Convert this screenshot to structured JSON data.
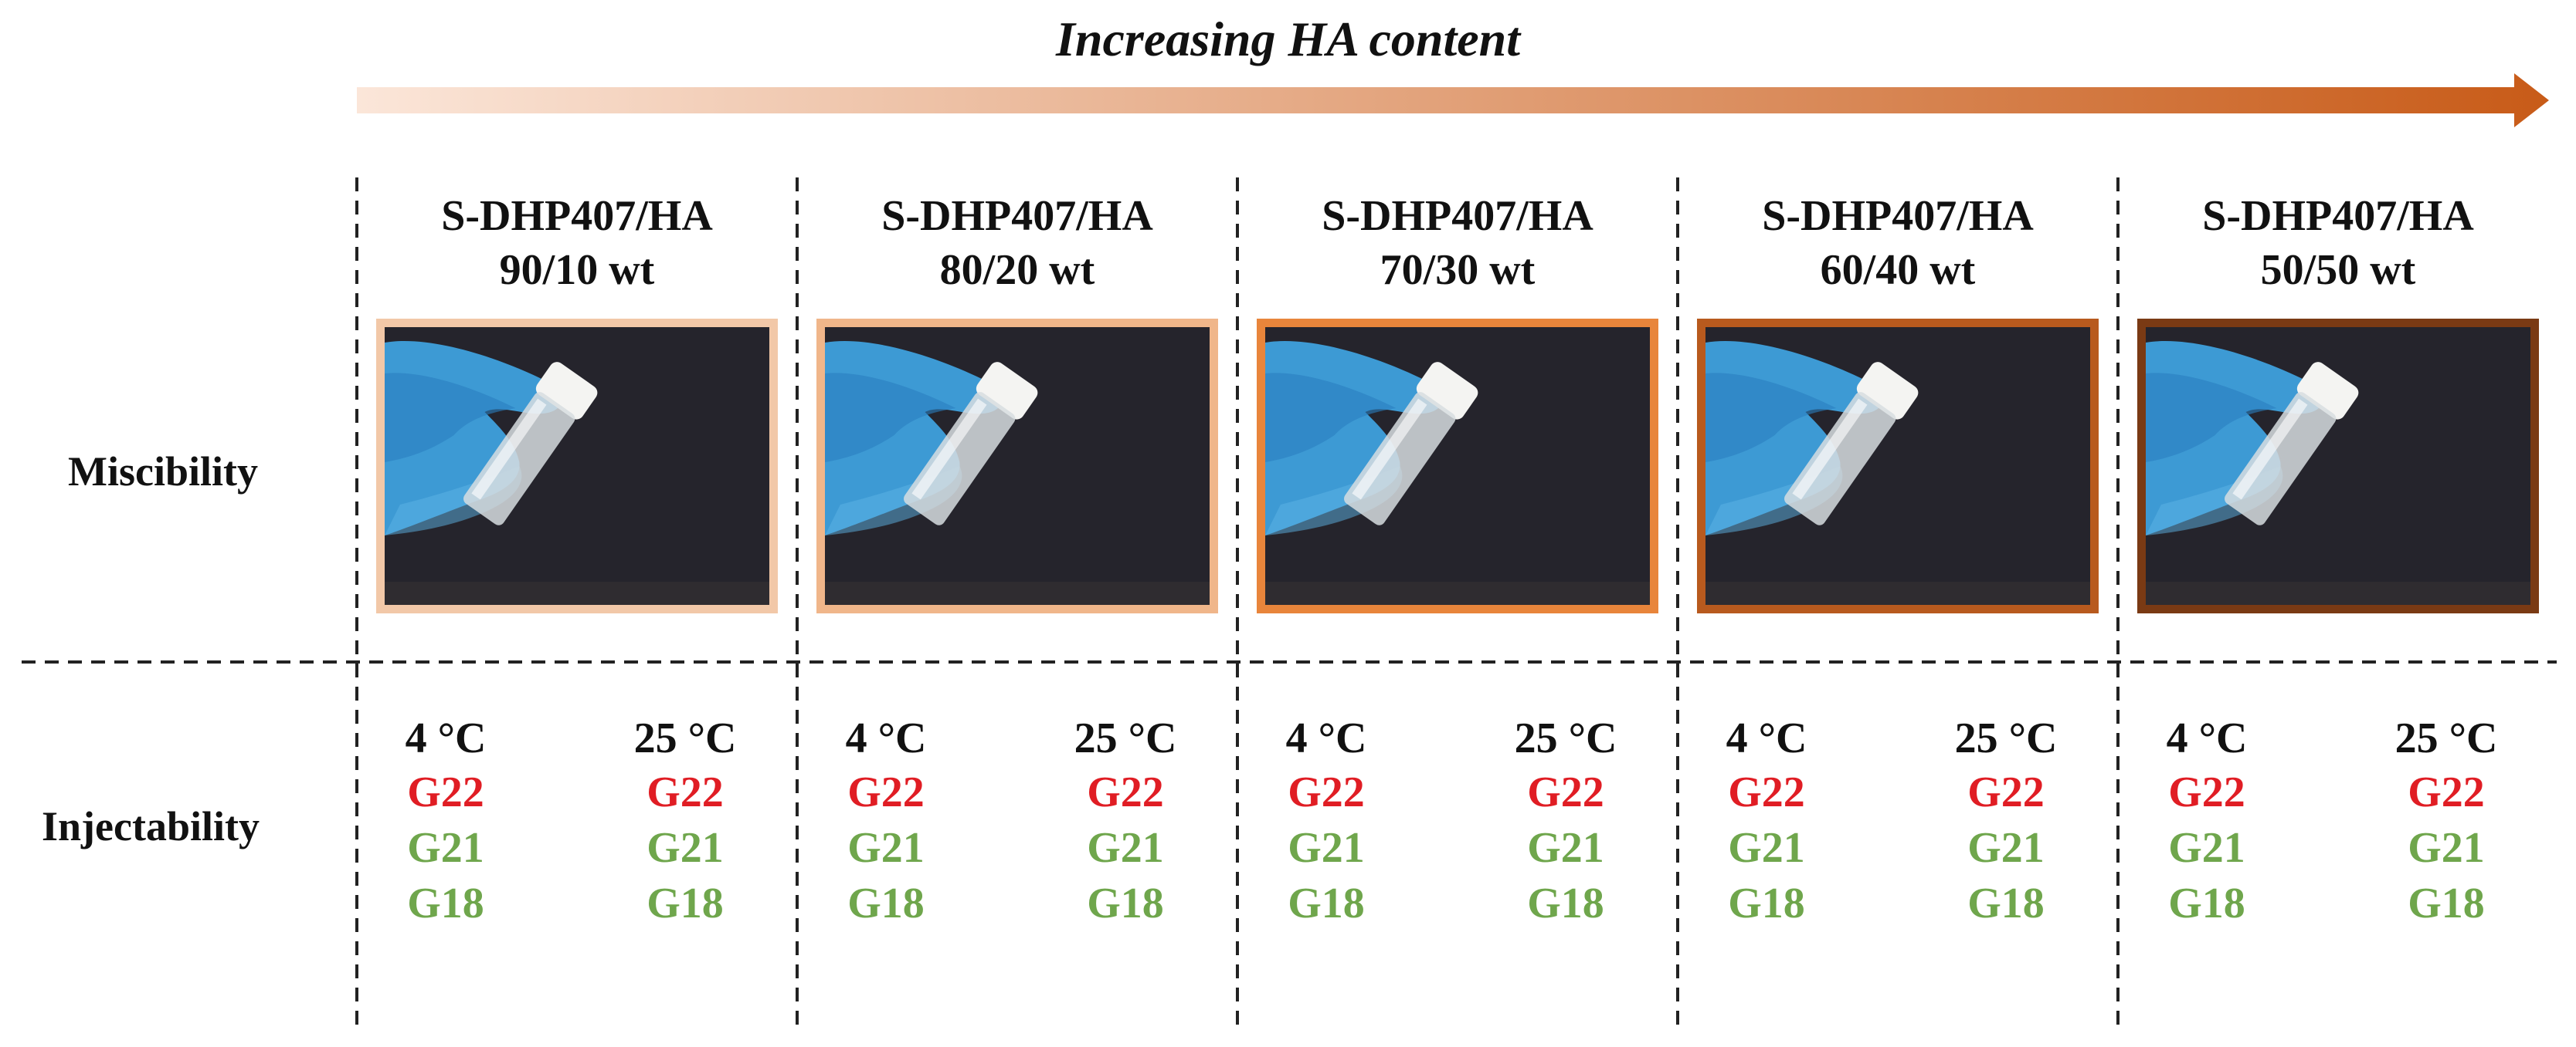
{
  "header": {
    "arrow_label": "Increasing HA content",
    "arrow_gradient": [
      "#fbe6d9",
      "#c85b18"
    ]
  },
  "rows": {
    "miscibility": "Miscibility",
    "injectability": "Injectability"
  },
  "columns": [
    {
      "title_line1": "S-DHP407/HA",
      "title_line2": "90/10 wt",
      "frame_color": "#f2c8a8"
    },
    {
      "title_line1": "S-DHP407/HA",
      "title_line2": "80/20 wt",
      "frame_color": "#f0b68a"
    },
    {
      "title_line1": "S-DHP407/HA",
      "title_line2": "70/30 wt",
      "frame_color": "#e8853b"
    },
    {
      "title_line1": "S-DHP407/HA",
      "title_line2": "60/40 wt",
      "frame_color": "#b85a1e"
    },
    {
      "title_line1": "S-DHP407/HA",
      "title_line2": "50/50 wt",
      "frame_color": "#7a3a14"
    }
  ],
  "injectability": {
    "temps": [
      "4 °C",
      "25 °C"
    ],
    "gauges": [
      {
        "label": "G22",
        "color": "#e01d24"
      },
      {
        "label": "G21",
        "color": "#6fa64c"
      },
      {
        "label": "G18",
        "color": "#6fa64c"
      }
    ]
  }
}
